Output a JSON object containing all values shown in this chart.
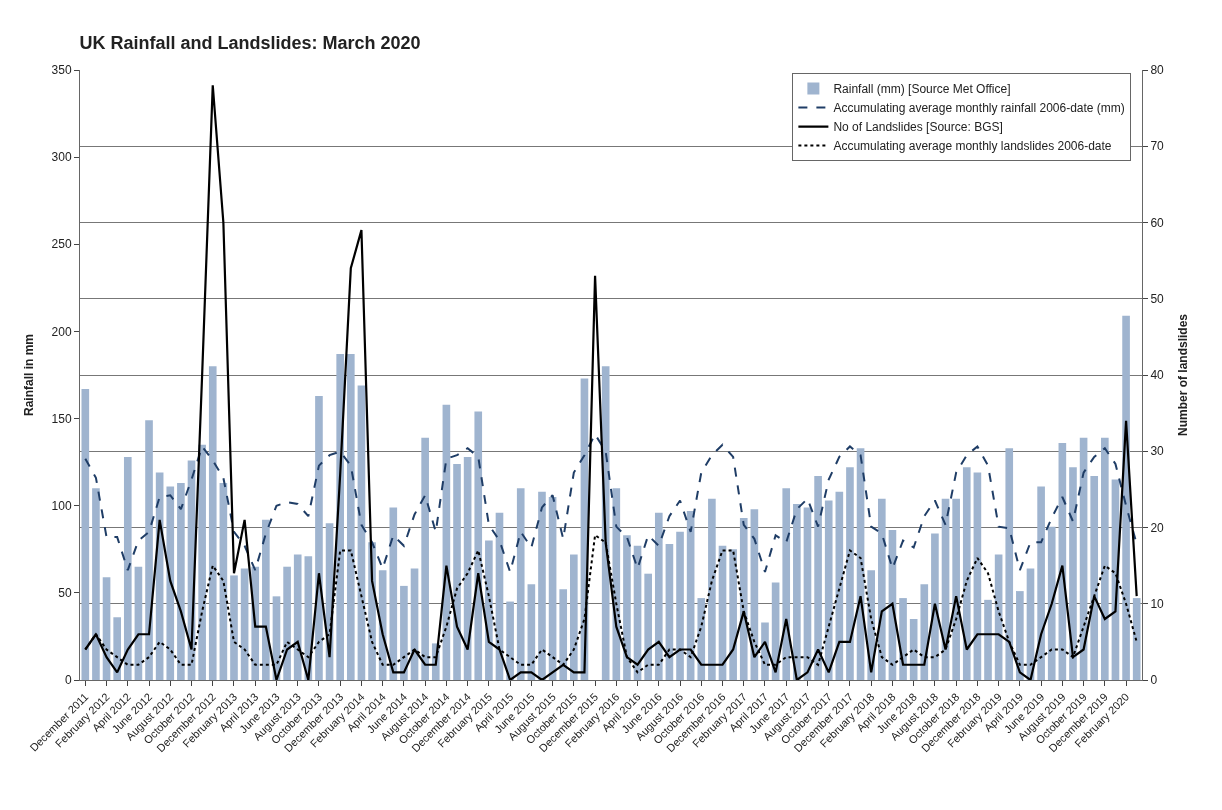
{
  "chart_data": {
    "type": "bar",
    "title": "UK Rainfall and Landslides: March 2020",
    "ylabel": "Rainfall in mm",
    "y2label": "Number of landslides",
    "categories": [
      "December 2011",
      null,
      "February 2012",
      null,
      "April 2012",
      null,
      "June 2012",
      null,
      "August 2012",
      null,
      "October 2012",
      null,
      "December 2012",
      null,
      "February 2013",
      null,
      "April 2013",
      null,
      "June 2013",
      null,
      "August 2013",
      null,
      "October 2013",
      null,
      "December 2013",
      null,
      "February 2014",
      null,
      "April 2014",
      null,
      "June 2014",
      null,
      "August 2014",
      null,
      "October 2014",
      null,
      "December 2014",
      null,
      "February 2015",
      null,
      "April 2015",
      null,
      "June 2015",
      null,
      "August 2015",
      null,
      "October 2015",
      null,
      "December 2015",
      null,
      "February 2016",
      null,
      "April 2016",
      null,
      "June 2016",
      null,
      "August 2016",
      null,
      "October 2016",
      null,
      "December 2016",
      null,
      "February 2017",
      null,
      "April 2017",
      null,
      "June 2017",
      null,
      "August 2017",
      null,
      "October 2017",
      null,
      "December 2017",
      null,
      "February 2018",
      null,
      "April 2018",
      null,
      "June 2018",
      null,
      "August 2018",
      null,
      "October 2018",
      null,
      "December 2018",
      null,
      "February 2019",
      null,
      "April 2019",
      null,
      "June 2019",
      null,
      "August 2019",
      null,
      "October 2019",
      null,
      "December 2019",
      null,
      "February 2020",
      null
    ],
    "series": [
      {
        "name": "Rainfall (mm) [Source Met Office]",
        "color": "#9fb4cf",
        "values": [
          167,
          110,
          59,
          36,
          128,
          65,
          149,
          119,
          111,
          113,
          126,
          135,
          180,
          113,
          60,
          64,
          65,
          92,
          48,
          65,
          72,
          71,
          163,
          90,
          187,
          187,
          169,
          79,
          63,
          99,
          54,
          64,
          139,
          21,
          158,
          124,
          128,
          154,
          80,
          96,
          45,
          110,
          55,
          108,
          105,
          52,
          72,
          173,
          null,
          180,
          110,
          83,
          77,
          61,
          96,
          78,
          85,
          97,
          47,
          104,
          77,
          75,
          93,
          98,
          33,
          56,
          110,
          101,
          99,
          117,
          103,
          108,
          122,
          133,
          63,
          104,
          86,
          47,
          35,
          55,
          84,
          104,
          104,
          122,
          119,
          46,
          72,
          133,
          51,
          64,
          111,
          88,
          136,
          122,
          139,
          117,
          139,
          115,
          209,
          47
        ]
      },
      {
        "name": "Accumulating average monthly rainfall 2006-date (mm)",
        "type": "line",
        "line_style": "dashed",
        "color": "#1f3d66",
        "values": [
          127,
          116,
          82,
          82,
          63,
          80,
          85,
          105,
          106,
          98,
          115,
          134,
          126,
          116,
          85,
          77,
          63,
          84,
          100,
          102,
          101,
          94,
          123,
          129,
          131,
          123,
          89,
          79,
          64,
          83,
          77,
          95,
          106,
          85,
          127,
          129,
          133,
          128,
          89,
          80,
          62,
          85,
          76,
          99,
          106,
          81,
          119,
          129,
          141,
          131,
          88,
          82,
          64,
          83,
          77,
          94,
          103,
          85,
          119,
          129,
          135,
          128,
          89,
          81,
          62,
          83,
          79,
          98,
          104,
          88,
          115,
          128,
          134,
          129,
          88,
          84,
          64,
          80,
          76,
          94,
          103,
          89,
          119,
          129,
          134,
          123,
          88,
          87,
          63,
          79,
          79,
          93,
          105,
          91,
          119,
          128,
          133,
          124,
          100,
          78
        ]
      },
      {
        "name": "No of Landslides [Source: BGS]",
        "type": "line",
        "axis": "y2",
        "line_style": "solid",
        "color": "#000000",
        "values": [
          4,
          6,
          3,
          1,
          4,
          6,
          6,
          21,
          13,
          9,
          4,
          40,
          78,
          60,
          14,
          21,
          7,
          7,
          0,
          4,
          5,
          0,
          14,
          3,
          27,
          54,
          59,
          13,
          6,
          1,
          1,
          4,
          2,
          2,
          15,
          7,
          4,
          14,
          5,
          4,
          0,
          1,
          1,
          0,
          1,
          2,
          1,
          1,
          53,
          18,
          7,
          3,
          2,
          4,
          5,
          3,
          4,
          4,
          2,
          2,
          2,
          4,
          9,
          3,
          5,
          1,
          8,
          0,
          1,
          4,
          1,
          5,
          5,
          11,
          1,
          9,
          10,
          2,
          2,
          2,
          10,
          4,
          11,
          4,
          6,
          6,
          6,
          5,
          1,
          0,
          6,
          10,
          15,
          3,
          4,
          11,
          8,
          9,
          34,
          11
        ]
      },
      {
        "name": "Accumulating average monthly landslides 2006-date",
        "type": "line",
        "axis": "y2",
        "line_style": "dotted",
        "color": "#000000",
        "values": [
          4,
          6,
          4,
          3,
          2,
          2,
          3,
          5,
          4,
          2,
          2,
          9,
          15,
          13,
          5,
          4,
          2,
          2,
          2,
          5,
          4,
          3,
          5,
          6,
          17,
          17,
          11,
          5,
          2,
          2,
          3,
          4,
          3,
          3,
          7,
          12,
          14,
          17,
          11,
          4,
          3,
          2,
          2,
          4,
          3,
          2,
          4,
          8,
          19,
          18,
          10,
          3,
          1,
          2,
          2,
          4,
          4,
          3,
          7,
          13,
          17,
          17,
          9,
          5,
          2,
          2,
          3,
          3,
          3,
          2,
          7,
          12,
          17,
          16,
          8,
          3,
          2,
          3,
          4,
          3,
          3,
          4,
          8,
          13,
          16,
          14,
          9,
          5,
          2,
          2,
          3,
          4,
          4,
          3,
          7,
          11,
          15,
          14,
          10,
          5
        ]
      }
    ],
    "ylim": [
      0,
      350
    ],
    "yticks": [
      0,
      50,
      100,
      150,
      200,
      250,
      300,
      350
    ],
    "y2lim": [
      0,
      80
    ],
    "y2ticks": [
      0,
      10,
      20,
      30,
      40,
      50,
      60,
      70,
      80
    ],
    "grid": "y2",
    "legend": "top right",
    "marker": "none"
  }
}
